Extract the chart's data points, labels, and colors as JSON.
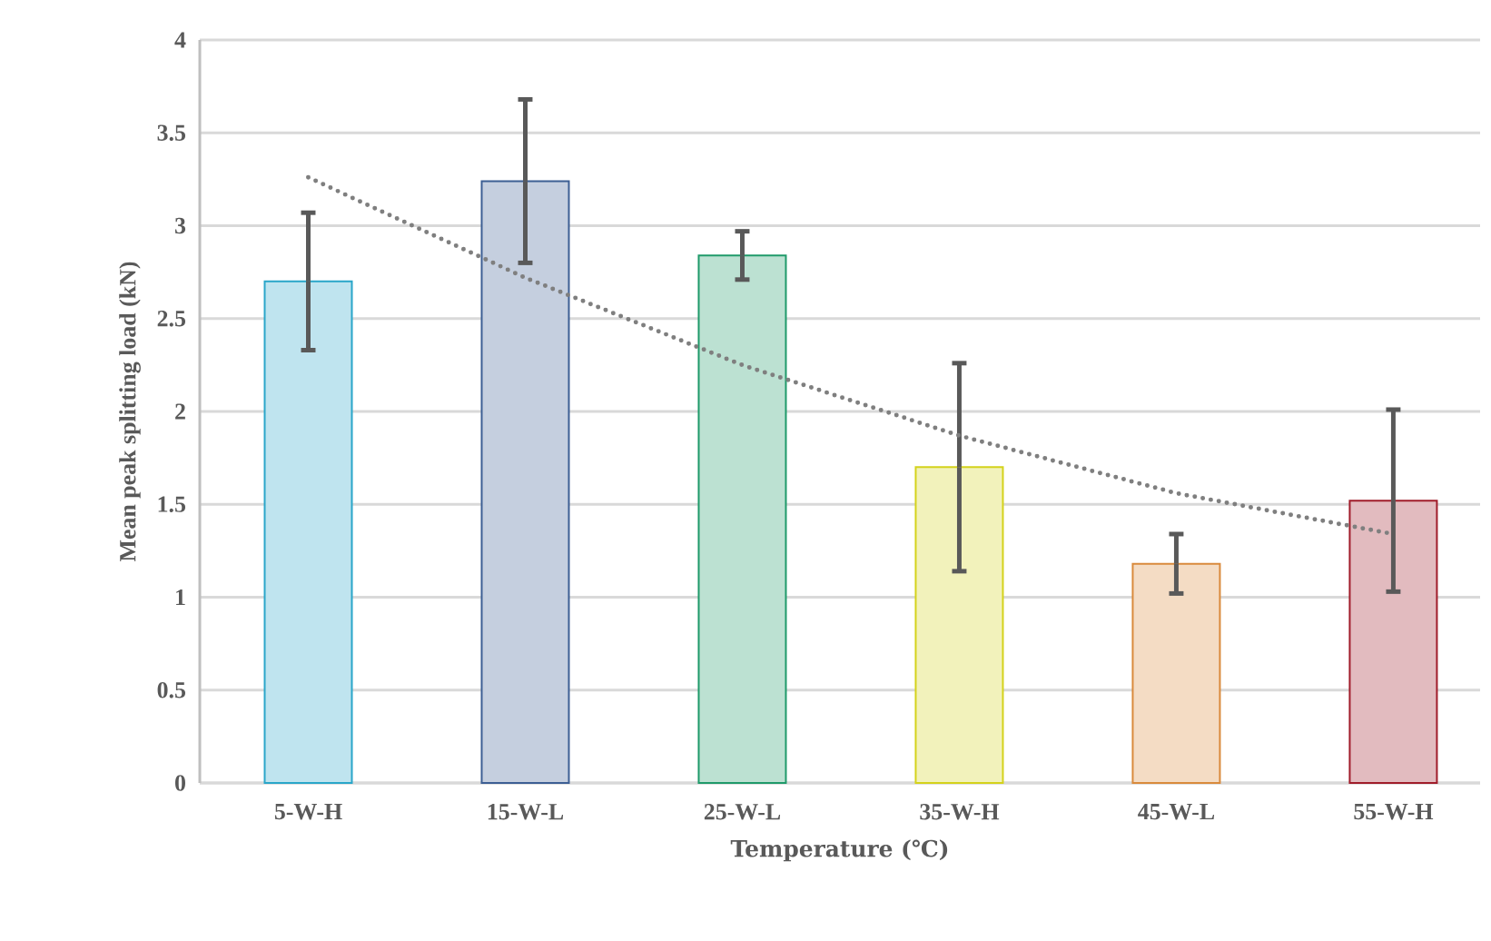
{
  "chart_data": {
    "type": "bar",
    "xlabel": "Temperature (℃)",
    "ylabel": "Mean peak splitting load (kN)",
    "categories": [
      "5-W-H",
      "15-W-L",
      "25-W-L",
      "35-W-H",
      "45-W-L",
      "55-W-H"
    ],
    "values": [
      2.7,
      3.24,
      2.84,
      1.7,
      1.18,
      1.52
    ],
    "errors": [
      0.37,
      0.44,
      0.13,
      0.56,
      0.16,
      0.49
    ],
    "colors": [
      "#2aa6c9",
      "#3d5f94",
      "#1f9a6a",
      "#d4d21b",
      "#d98a3c",
      "#a01c2a"
    ],
    "series": [
      {
        "type": "line",
        "color": "#7f7f7f",
        "line_style": "dotted",
        "values": [
          3.26,
          2.72,
          2.25,
          1.87,
          1.56,
          1.34
        ]
      }
    ],
    "ylim": [
      0,
      4
    ],
    "yticks": [
      0,
      0.5,
      1,
      1.5,
      2,
      2.5,
      3,
      3.5,
      4
    ],
    "grid": "y"
  }
}
